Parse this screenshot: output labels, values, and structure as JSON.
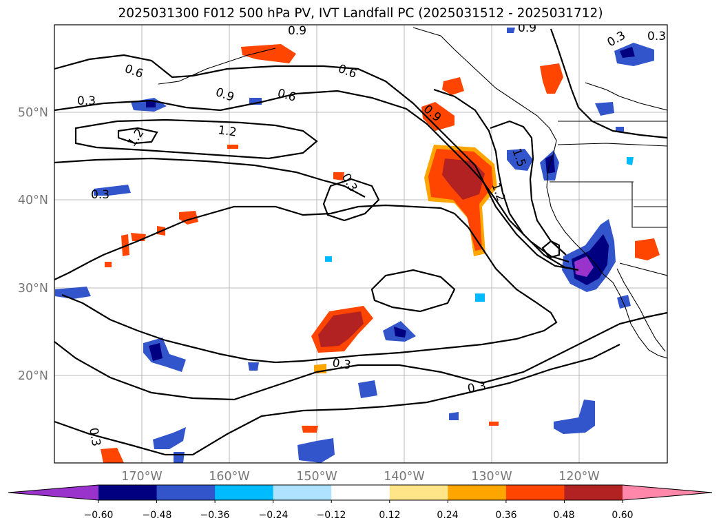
{
  "title": "2025031300 F012 500 hPa PV, IVT Landfall PC (2025031512 - 2025031712)",
  "map": {
    "lon_range": [
      -180,
      -110
    ],
    "lat_range": [
      10,
      60
    ],
    "lat_ticks": [
      "50°N",
      "40°N",
      "30°N",
      "20°N"
    ],
    "lon_ticks": [
      "170°W",
      "160°W",
      "150°W",
      "140°W",
      "130°W",
      "120°W"
    ],
    "contour_labels": [
      "0.9",
      "0.9",
      "0.3",
      "0.3",
      "0.6",
      "0.6",
      "0.9",
      "0.6",
      "0.3",
      "1.2",
      "1.2",
      "0.9",
      "1.5",
      "0.3",
      "1.2",
      "0.3",
      "0.3",
      "0.3",
      "0.3"
    ],
    "grid": true,
    "coastlines": true
  },
  "colorbar": {
    "ticks": [
      "−0.60",
      "−0.48",
      "−0.36",
      "−0.24",
      "−0.12",
      "0.12",
      "0.24",
      "0.36",
      "0.48",
      "0.60"
    ],
    "colors": [
      "#9933cc",
      "#000080",
      "#3355cc",
      "#00bbff",
      "#aee2ff",
      "#ffffff",
      "#ffe488",
      "#ffa500",
      "#ff4500",
      "#b22222",
      "#ff88aa"
    ],
    "extend": "both"
  }
}
